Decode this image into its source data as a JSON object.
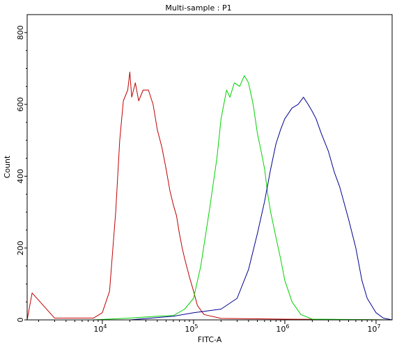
{
  "chart_data": {
    "type": "line",
    "title": "Multi-sample : P1",
    "xlabel": "FITC-A",
    "ylabel": "Count",
    "x_scale": "log",
    "xlim": [
      1500,
      15000000
    ],
    "ylim": [
      0,
      850
    ],
    "grid": false,
    "y_ticks": [
      0,
      200,
      400,
      600,
      800
    ],
    "x_ticks": [
      {
        "base": "10",
        "exp": "4",
        "value": 10000
      },
      {
        "base": "10",
        "exp": "5",
        "value": 100000
      },
      {
        "base": "10",
        "exp": "6",
        "value": 1000000
      },
      {
        "base": "10",
        "exp": "7",
        "value": 10000000
      }
    ],
    "series": [
      {
        "color": "#c00000",
        "x": [
          1500,
          1700,
          3000,
          8000,
          10000,
          12000,
          14000,
          15500,
          17000,
          19000,
          20000,
          21000,
          23000,
          25000,
          28000,
          32000,
          36000,
          40000,
          45000,
          50000,
          55000,
          60000,
          65000,
          70000,
          75000,
          80000,
          90000,
          100000,
          110000,
          130000,
          200000,
          1000000,
          15000000
        ],
        "y": [
          0,
          75,
          5,
          5,
          20,
          80,
          300,
          500,
          610,
          640,
          690,
          620,
          660,
          610,
          640,
          640,
          600,
          530,
          480,
          420,
          360,
          320,
          290,
          240,
          200,
          170,
          120,
          80,
          40,
          15,
          4,
          2,
          0
        ]
      },
      {
        "color": "#00d200",
        "x": [
          8000,
          20000,
          40000,
          60000,
          80000,
          100000,
          120000,
          150000,
          180000,
          200000,
          230000,
          250000,
          280000,
          320000,
          360000,
          400000,
          450000,
          500000,
          550000,
          600000,
          650000,
          700000,
          800000,
          900000,
          1000000,
          1200000,
          1500000,
          2000000,
          15000000
        ],
        "y": [
          0,
          5,
          10,
          12,
          30,
          60,
          150,
          310,
          450,
          560,
          640,
          620,
          660,
          650,
          680,
          660,
          600,
          520,
          470,
          420,
          350,
          300,
          230,
          170,
          110,
          50,
          15,
          2,
          0
        ]
      },
      {
        "color": "#000090",
        "x": [
          20000,
          60000,
          100000,
          200000,
          300000,
          400000,
          500000,
          600000,
          700000,
          800000,
          900000,
          1000000,
          1200000,
          1400000,
          1600000,
          1800000,
          2000000,
          2200000,
          2500000,
          3000000,
          3500000,
          4000000,
          5000000,
          6000000,
          7000000,
          8000000,
          10000000,
          12000000,
          15000000
        ],
        "y": [
          0,
          10,
          20,
          30,
          60,
          140,
          240,
          330,
          420,
          490,
          530,
          560,
          590,
          600,
          620,
          600,
          580,
          560,
          520,
          470,
          410,
          370,
          280,
          200,
          110,
          60,
          20,
          5,
          0
        ]
      }
    ]
  }
}
